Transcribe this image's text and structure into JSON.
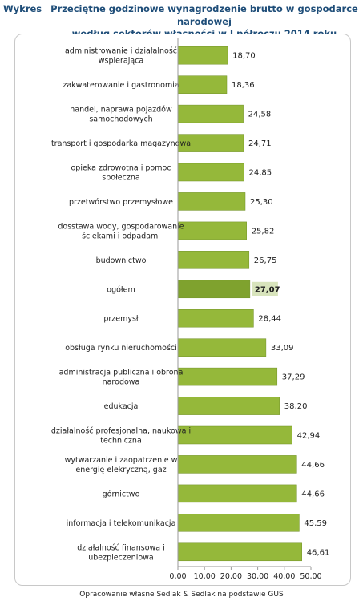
{
  "header": {
    "label": "Wykres",
    "title_line1": "Przeciętne godzinowe wynagrodzenie brutto w gospodarce narodowej",
    "title_line2": "według sektorów własności w I półroczu 2014 roku"
  },
  "footer": "Opracowanie własne Sedlak & Sedlak na podstawie GUS",
  "colors": {
    "bar": "#95b83a",
    "bar_highlight": "#7fa22e",
    "highlight_label_bg": "#d8e4bc",
    "axis": "#9a9a9a"
  },
  "chart_data": {
    "type": "bar",
    "orientation": "horizontal",
    "categories": [
      [
        "administrowanie i działalność",
        "wspierająca"
      ],
      [
        "zakwaterowanie i gastronomia"
      ],
      [
        "handel, naprawa pojazdów",
        "samochodowych"
      ],
      [
        "transport i gospodarka magazynowa"
      ],
      [
        "opieka zdrowotna i pomoc",
        "społeczna"
      ],
      [
        "przetwórstwo przemysłowe"
      ],
      [
        "dosstawa wody, gospodarowanie",
        "ściekami i odpadami"
      ],
      [
        "budownictwo"
      ],
      [
        "ogółem"
      ],
      [
        "przemysł"
      ],
      [
        "obsługa rynku nieruchomości"
      ],
      [
        "administracja publiczna i obrona",
        "narodowa"
      ],
      [
        "edukacja"
      ],
      [
        "działalność profesjonalna, naukowa i",
        "techniczna"
      ],
      [
        "wytwarzanie i zaopatrzenie w",
        "energię elekryczną, gaz"
      ],
      [
        "górnictwo"
      ],
      [
        "informacja i telekomunikacja"
      ],
      [
        "działalność finansowa i",
        "ubezpieczeniowa"
      ]
    ],
    "values": [
      18.7,
      18.36,
      24.58,
      24.71,
      24.85,
      25.3,
      25.82,
      26.75,
      27.07,
      28.44,
      33.09,
      37.29,
      38.2,
      42.94,
      44.66,
      44.66,
      45.59,
      46.61
    ],
    "value_labels": [
      "18,70",
      "18,36",
      "24,58",
      "24,71",
      "24,85",
      "25,30",
      "25,82",
      "26,75",
      "27,07",
      "28,44",
      "33,09",
      "37,29",
      "38,20",
      "42,94",
      "44,66",
      "44,66",
      "45,59",
      "46,61"
    ],
    "highlight_index": 8,
    "xlim": [
      0,
      50
    ],
    "xticks": [
      "0,00",
      "10,00",
      "20,00",
      "30,00",
      "40,00",
      "50,00"
    ],
    "grid": false,
    "legend": "none"
  }
}
